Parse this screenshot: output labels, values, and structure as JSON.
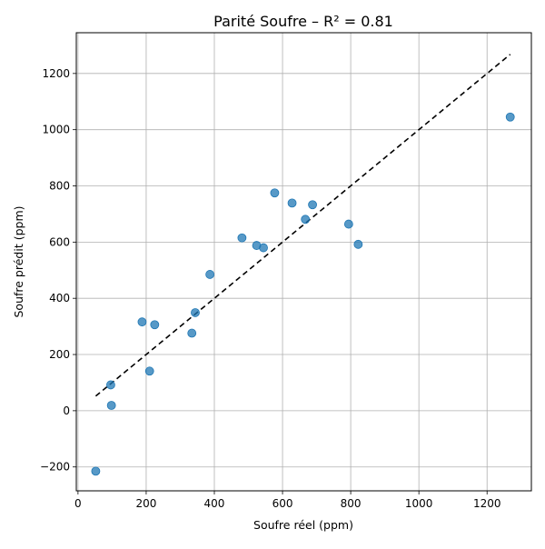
{
  "chart_data": {
    "type": "scatter",
    "title": "Parité Soufre – R² = 0.81",
    "xlabel": "Soufre réel (ppm)",
    "ylabel": "Soufre prédit (ppm)",
    "xlim": [
      -5,
      1330
    ],
    "ylim": [
      -285,
      1345
    ],
    "xticks": [
      0,
      200,
      400,
      600,
      800,
      1000,
      1200
    ],
    "yticks": [
      -200,
      0,
      200,
      400,
      600,
      800,
      1000,
      1200
    ],
    "xtick_labels": [
      "0",
      "200",
      "400",
      "600",
      "800",
      "1000",
      "1200"
    ],
    "ytick_labels": [
      "−200",
      "0",
      "200",
      "400",
      "600",
      "800",
      "1000",
      "1200"
    ],
    "grid": true,
    "parity_line": {
      "x": [
        52,
        1268
      ],
      "y": [
        52,
        1268
      ],
      "style": "dashed",
      "color": "#000000"
    },
    "marker_color": "#1f77b4",
    "series": [
      {
        "points": [
          [
            52,
            -215
          ],
          [
            96,
            92
          ],
          [
            98,
            19
          ],
          [
            188,
            316
          ],
          [
            210,
            141
          ],
          [
            225,
            306
          ],
          [
            334,
            276
          ],
          [
            344,
            349
          ],
          [
            387,
            485
          ],
          [
            481,
            615
          ],
          [
            524,
            588
          ],
          [
            544,
            580
          ],
          [
            577,
            775
          ],
          [
            628,
            739
          ],
          [
            667,
            681
          ],
          [
            688,
            733
          ],
          [
            794,
            664
          ],
          [
            822,
            592
          ],
          [
            1268,
            1045
          ]
        ]
      }
    ]
  }
}
